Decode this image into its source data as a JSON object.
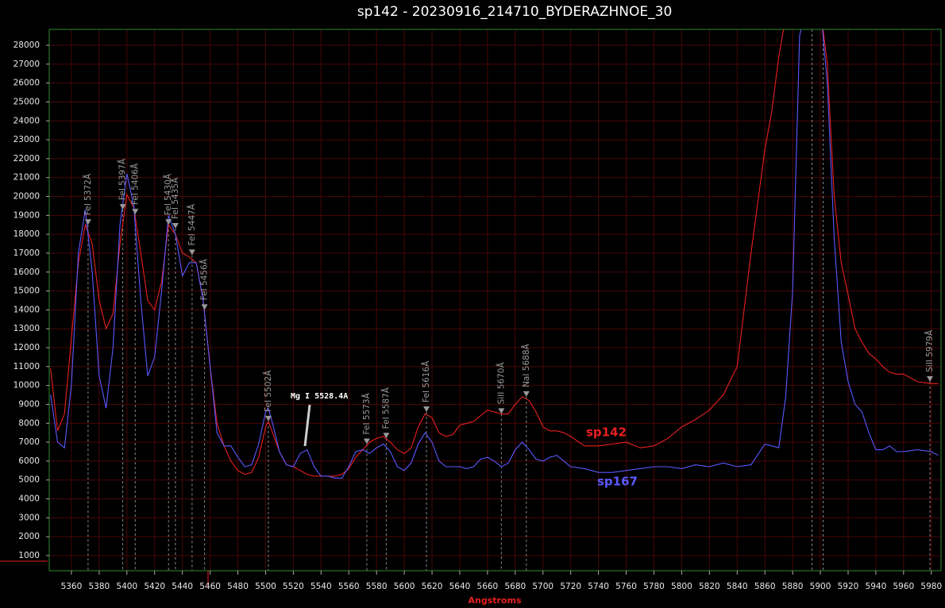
{
  "chart_data": {
    "type": "line",
    "title": "sp142 - 20230916_214710_BYDERAZHNOE_30",
    "x_label": "Angstroms",
    "xlim": [
      5344,
      5987
    ],
    "ylim": [
      200,
      28840
    ],
    "xticks": [
      5360,
      5380,
      5400,
      5420,
      5440,
      5460,
      5480,
      5500,
      5520,
      5540,
      5560,
      5580,
      5600,
      5620,
      5640,
      5660,
      5680,
      5700,
      5720,
      5740,
      5760,
      5780,
      5800,
      5820,
      5840,
      5860,
      5880,
      5900,
      5920,
      5940,
      5960,
      5980
    ],
    "yticks": [
      1000,
      2000,
      3000,
      4000,
      5000,
      6000,
      7000,
      8000,
      9000,
      10000,
      11000,
      12000,
      13000,
      14000,
      15000,
      16000,
      17000,
      18000,
      19000,
      20000,
      21000,
      22000,
      23000,
      24000,
      25000,
      26000,
      27000,
      28000
    ],
    "grid": true,
    "x": [
      5345,
      5350,
      5355,
      5360,
      5365,
      5370,
      5375,
      5380,
      5385,
      5390,
      5395,
      5400,
      5405,
      5410,
      5415,
      5420,
      5425,
      5430,
      5435,
      5440,
      5445,
      5450,
      5455,
      5460,
      5465,
      5470,
      5475,
      5480,
      5485,
      5490,
      5495,
      5500,
      5502,
      5505,
      5510,
      5515,
      5520,
      5525,
      5530,
      5535,
      5540,
      5545,
      5550,
      5555,
      5560,
      5565,
      5570,
      5575,
      5580,
      5585,
      5590,
      5595,
      5600,
      5605,
      5610,
      5615,
      5620,
      5625,
      5630,
      5635,
      5640,
      5645,
      5650,
      5655,
      5660,
      5665,
      5670,
      5675,
      5680,
      5685,
      5690,
      5695,
      5700,
      5705,
      5710,
      5715,
      5720,
      5730,
      5740,
      5750,
      5760,
      5770,
      5780,
      5790,
      5800,
      5810,
      5820,
      5830,
      5840,
      5850,
      5860,
      5865,
      5870,
      5875,
      5880,
      5885,
      5890,
      5895,
      5900,
      5905,
      5910,
      5915,
      5920,
      5925,
      5930,
      5935,
      5940,
      5945,
      5950,
      5955,
      5960,
      5970,
      5980,
      5985
    ],
    "series": [
      {
        "name": "sp142",
        "color": "#e82020",
        "values": [
          10900,
          7600,
          8500,
          12500,
          16500,
          18500,
          17500,
          14500,
          13000,
          13800,
          17500,
          20100,
          19400,
          17000,
          14500,
          14000,
          15500,
          18500,
          18000,
          17000,
          16800,
          16500,
          14500,
          11000,
          8000,
          6800,
          6000,
          5500,
          5300,
          5400,
          6200,
          7800,
          8100,
          7500,
          6500,
          5800,
          5700,
          5500,
          5300,
          5200,
          5200,
          5200,
          5200,
          5300,
          5600,
          6200,
          6600,
          7000,
          7200,
          7300,
          7000,
          6600,
          6400,
          6700,
          7800,
          8500,
          8300,
          7500,
          7300,
          7400,
          7900,
          8000,
          8100,
          8400,
          8700,
          8600,
          8500,
          8500,
          9000,
          9400,
          9200,
          8600,
          7800,
          7600,
          7600,
          7500,
          7300,
          6800,
          6800,
          6900,
          7000,
          6700,
          6800,
          7200,
          7800,
          8200,
          8700,
          9500,
          11000,
          17000,
          22500,
          24500,
          27400,
          29500,
          30000,
          30000,
          30000,
          30000,
          30000,
          27000,
          20000,
          16500,
          14800,
          13000,
          12300,
          11700,
          11400,
          11000,
          10700,
          10600,
          10600,
          10200,
          10100,
          10100
        ]
      },
      {
        "name": "sp167",
        "color": "#5a5aff",
        "values": [
          9500,
          7000,
          6700,
          10000,
          17000,
          19300,
          16000,
          10500,
          8800,
          12000,
          18500,
          21200,
          19500,
          14500,
          10500,
          11500,
          15000,
          19000,
          18000,
          15800,
          16500,
          16500,
          14500,
          11000,
          7500,
          6800,
          6800,
          6200,
          5700,
          5800,
          6900,
          8600,
          8800,
          8000,
          6500,
          5800,
          5700,
          6400,
          6600,
          5700,
          5200,
          5200,
          5100,
          5100,
          5700,
          6500,
          6600,
          6400,
          6700,
          6900,
          6500,
          5700,
          5500,
          5900,
          6900,
          7500,
          7000,
          6000,
          5700,
          5700,
          5700,
          5600,
          5700,
          6100,
          6200,
          6000,
          5700,
          5900,
          6600,
          7000,
          6600,
          6100,
          6000,
          6200,
          6300,
          6000,
          5700,
          5600,
          5400,
          5400,
          5500,
          5600,
          5700,
          5700,
          5600,
          5800,
          5700,
          5900,
          5700,
          5800,
          6900,
          6800,
          6700,
          9400,
          15000,
          28500,
          30000,
          30000,
          30000,
          26000,
          17800,
          12300,
          10200,
          9000,
          8600,
          7500,
          6600,
          6600,
          6800,
          6500,
          6500,
          6600,
          6500,
          6300
        ]
      }
    ],
    "annotations": [
      {
        "label": "FeI 5372Å",
        "x": 5372,
        "y": 18500
      },
      {
        "label": "FeI 5397Å",
        "x": 5397,
        "y": 19300
      },
      {
        "label": "FeI 5406Å",
        "x": 5406,
        "y": 19050
      },
      {
        "label": "FeI 5430Å",
        "x": 5430,
        "y": 18500
      },
      {
        "label": "FeI 5435Å",
        "x": 5435,
        "y": 18300
      },
      {
        "label": "FeI 5447Å",
        "x": 5447,
        "y": 16900
      },
      {
        "label": "FeI 5456Å",
        "x": 5456,
        "y": 14000
      },
      {
        "label": "FeI 5502Å",
        "x": 5502,
        "y": 8100
      },
      {
        "label": "FeI 5573Å",
        "x": 5573,
        "y": 6900
      },
      {
        "label": "FeI 5587Å",
        "x": 5587,
        "y": 7200
      },
      {
        "label": "FeI 5616Å",
        "x": 5616,
        "y": 8600
      },
      {
        "label": "SiII 5670Å",
        "x": 5670,
        "y": 8500
      },
      {
        "label": "NaI 5688Å",
        "x": 5688,
        "y": 9400
      },
      {
        "label": "SiII 5979Å",
        "x": 5979,
        "y": 10200
      }
    ],
    "marker_lines": [
      5894,
      5902
    ],
    "note": "Mg I 5528.4A"
  }
}
